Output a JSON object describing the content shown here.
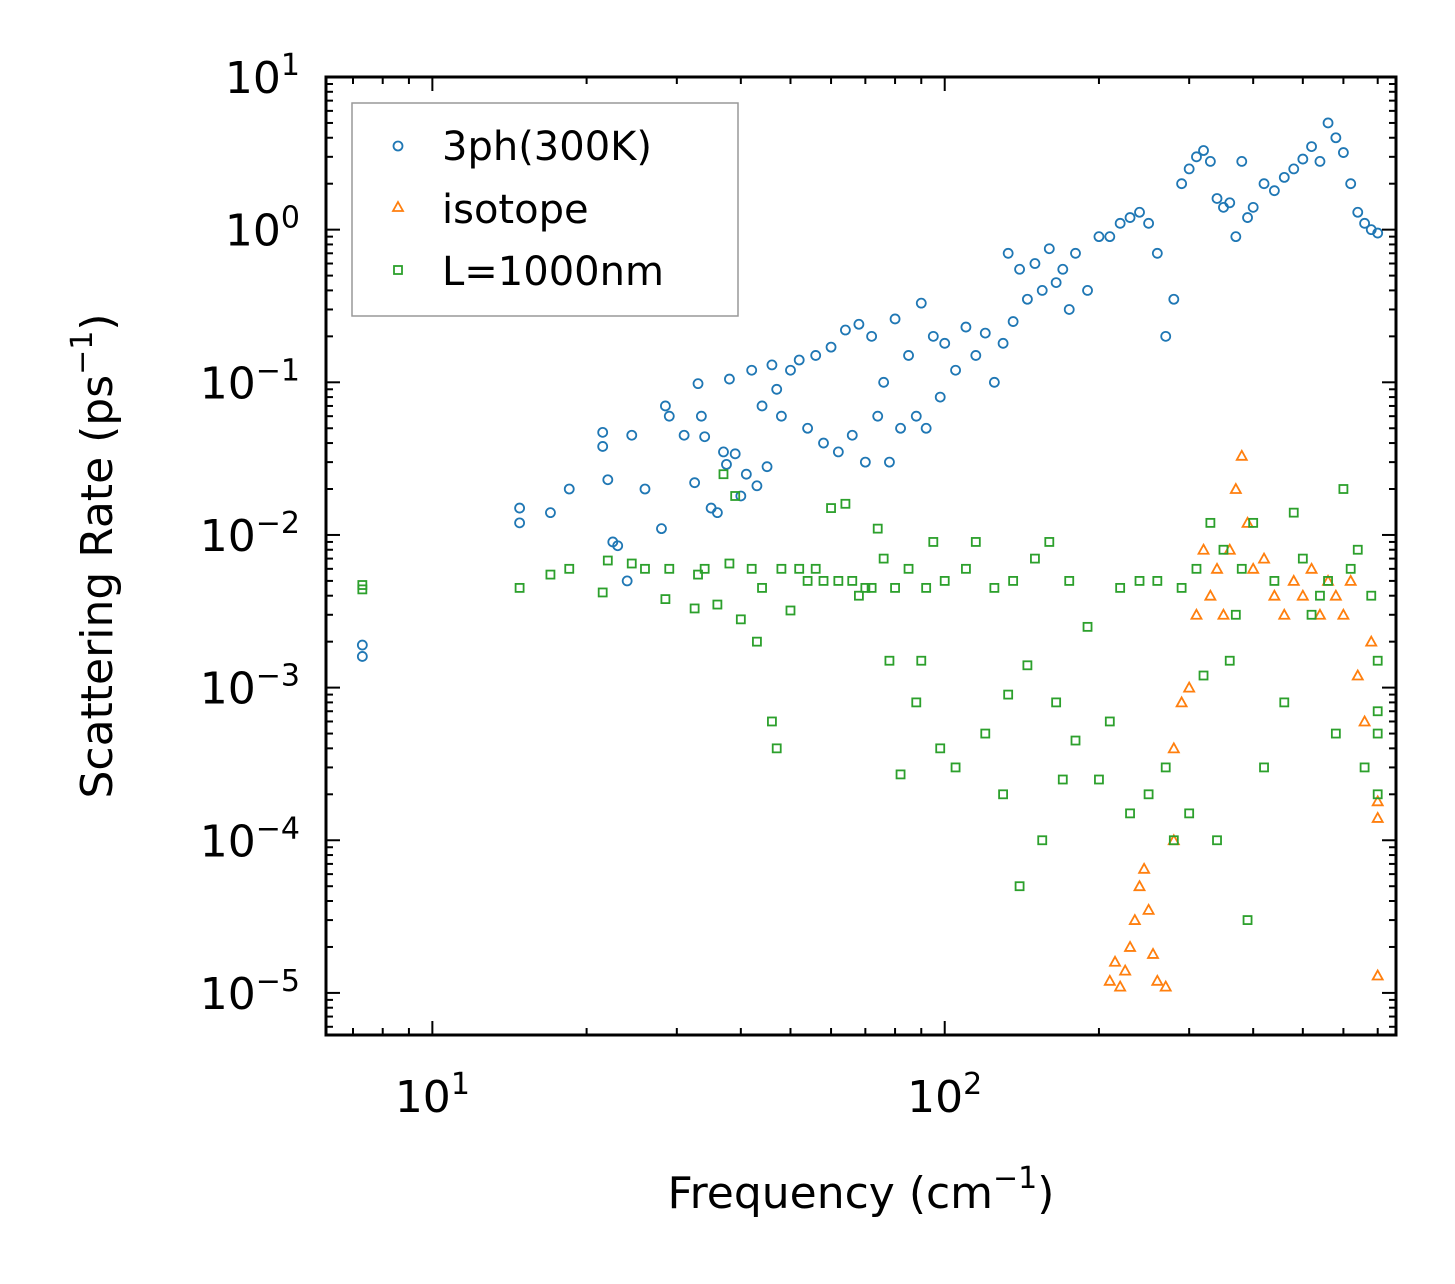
{
  "chart_data": {
    "type": "scatter",
    "title": "",
    "xlabel": "Frequency (cm",
    "xlabel_sup": "−1",
    "xlabel_end": ")",
    "ylabel": "Scattering Rate (ps",
    "ylabel_sup": "−1",
    "ylabel_end": ")",
    "xscale": "log",
    "yscale": "log",
    "xlim": [
      6.2,
      760
    ],
    "ylim": [
      5.3e-06,
      10
    ],
    "x_ticks": [
      {
        "value": 10,
        "base": "10",
        "exp": "1"
      },
      {
        "value": 100,
        "base": "10",
        "exp": "2"
      }
    ],
    "y_ticks": [
      {
        "value": 10,
        "base": "10",
        "exp": "1"
      },
      {
        "value": 1,
        "base": "10",
        "exp": "0"
      },
      {
        "value": 0.1,
        "base": "10",
        "exp": "−1"
      },
      {
        "value": 0.01,
        "base": "10",
        "exp": "−2"
      },
      {
        "value": 0.001,
        "base": "10",
        "exp": "−3"
      },
      {
        "value": 0.0001,
        "base": "10",
        "exp": "−4"
      },
      {
        "value": 1e-05,
        "base": "10",
        "exp": "−5"
      }
    ],
    "legend_position": "top-left",
    "series": [
      {
        "name": "3ph(300K)",
        "marker": "circle",
        "color": "#1f77b4",
        "x": [
          7.3,
          7.3,
          14.8,
          14.8,
          17.0,
          18.5,
          21.5,
          21.5,
          22.0,
          22.5,
          23.0,
          24.0,
          24.5,
          26.0,
          28.0,
          28.5,
          29.0,
          31.0,
          32.5,
          33.0,
          33.5,
          34.0,
          35.0,
          36.0,
          37.0,
          37.5,
          38.0,
          39.0,
          40.0,
          41.0,
          42.0,
          43.0,
          44.0,
          45.0,
          46.0,
          47.0,
          48.0,
          50.0,
          52.0,
          54.0,
          56.0,
          58.0,
          60.0,
          62.0,
          64.0,
          66.0,
          68.0,
          70.0,
          72.0,
          74.0,
          76.0,
          78.0,
          80.0,
          82.0,
          85.0,
          88.0,
          90.0,
          92.0,
          95.0,
          98.0,
          100.0,
          105.0,
          110.0,
          115.0,
          120.0,
          125.0,
          130.0,
          133.0,
          136.0,
          140.0,
          145.0,
          150.0,
          155.0,
          160.0,
          165.0,
          170.0,
          175.0,
          180.0,
          190.0,
          200.0,
          210.0,
          220.0,
          230.0,
          240.0,
          250.0,
          260.0,
          270.0,
          280.0,
          290.0,
          300.0,
          310.0,
          320.0,
          330.0,
          340.0,
          350.0,
          360.0,
          370.0,
          380.0,
          390.0,
          400.0,
          420.0,
          440.0,
          460.0,
          480.0,
          500.0,
          520.0,
          540.0,
          560.0,
          580.0,
          600.0,
          620.0,
          640.0,
          660.0,
          680.0,
          700.0
        ],
        "y": [
          0.0019,
          0.0016,
          0.015,
          0.012,
          0.014,
          0.02,
          0.047,
          0.038,
          0.023,
          0.009,
          0.0085,
          0.005,
          0.045,
          0.02,
          0.011,
          0.07,
          0.06,
          0.045,
          0.022,
          0.098,
          0.06,
          0.044,
          0.015,
          0.014,
          0.035,
          0.029,
          0.105,
          0.034,
          0.018,
          0.025,
          0.12,
          0.021,
          0.07,
          0.028,
          0.13,
          0.09,
          0.06,
          0.12,
          0.14,
          0.05,
          0.15,
          0.04,
          0.17,
          0.035,
          0.22,
          0.045,
          0.24,
          0.03,
          0.2,
          0.06,
          0.1,
          0.03,
          0.26,
          0.05,
          0.15,
          0.06,
          0.33,
          0.05,
          0.2,
          0.08,
          0.18,
          0.12,
          0.23,
          0.15,
          0.21,
          0.1,
          0.18,
          0.7,
          0.25,
          0.55,
          0.35,
          0.6,
          0.4,
          0.75,
          0.45,
          0.55,
          0.3,
          0.7,
          0.4,
          0.9,
          0.9,
          1.1,
          1.2,
          1.3,
          1.1,
          0.7,
          0.2,
          0.35,
          2.0,
          2.5,
          3.0,
          3.3,
          2.8,
          1.6,
          1.4,
          1.5,
          0.9,
          2.8,
          1.2,
          1.4,
          2.0,
          1.8,
          2.2,
          2.5,
          2.9,
          3.5,
          2.8,
          5.0,
          4.0,
          3.2,
          2.0,
          1.3,
          1.1,
          1.0,
          0.95
        ]
      },
      {
        "name": "isotope",
        "marker": "triangle",
        "color": "#ff7f0e",
        "x": [
          210.0,
          215.0,
          220.0,
          225.0,
          230.0,
          235.0,
          240.0,
          245.0,
          250.0,
          255.0,
          260.0,
          270.0,
          280.0,
          280.0,
          290.0,
          300.0,
          310.0,
          320.0,
          330.0,
          340.0,
          350.0,
          360.0,
          370.0,
          380.0,
          390.0,
          400.0,
          420.0,
          440.0,
          460.0,
          480.0,
          500.0,
          520.0,
          540.0,
          560.0,
          580.0,
          600.0,
          620.0,
          640.0,
          660.0,
          680.0,
          700.0,
          700.0,
          700.0
        ],
        "y": [
          1.2e-05,
          1.6e-05,
          1.1e-05,
          1.4e-05,
          2e-05,
          3e-05,
          5e-05,
          6.5e-05,
          3.5e-05,
          1.8e-05,
          1.2e-05,
          1.1e-05,
          0.0004,
          0.0001,
          0.0008,
          0.001,
          0.003,
          0.008,
          0.004,
          0.006,
          0.003,
          0.008,
          0.02,
          0.033,
          0.012,
          0.006,
          0.007,
          0.004,
          0.003,
          0.005,
          0.004,
          0.006,
          0.003,
          0.005,
          0.004,
          0.003,
          0.005,
          0.0012,
          0.0006,
          0.002,
          0.00018,
          0.00014,
          1.3e-05
        ]
      },
      {
        "name": "L=1000nm",
        "marker": "square",
        "color": "#2ca02c",
        "x": [
          7.3,
          7.3,
          14.8,
          17.0,
          18.5,
          21.5,
          22.0,
          24.5,
          26.0,
          28.5,
          29.0,
          32.5,
          33.0,
          34.0,
          36.0,
          37.0,
          38.0,
          39.0,
          40.0,
          42.0,
          43.0,
          44.0,
          46.0,
          47.0,
          48.0,
          50.0,
          52.0,
          54.0,
          56.0,
          58.0,
          60.0,
          62.0,
          64.0,
          66.0,
          68.0,
          70.0,
          72.0,
          74.0,
          76.0,
          78.0,
          80.0,
          82.0,
          85.0,
          88.0,
          90.0,
          92.0,
          95.0,
          98.0,
          100.0,
          105.0,
          110.0,
          115.0,
          120.0,
          125.0,
          130.0,
          133.0,
          136.0,
          140.0,
          145.0,
          150.0,
          155.0,
          160.0,
          165.0,
          170.0,
          175.0,
          180.0,
          190.0,
          200.0,
          210.0,
          220.0,
          230.0,
          240.0,
          250.0,
          260.0,
          270.0,
          280.0,
          290.0,
          300.0,
          310.0,
          320.0,
          330.0,
          340.0,
          350.0,
          360.0,
          370.0,
          380.0,
          390.0,
          400.0,
          420.0,
          440.0,
          460.0,
          480.0,
          500.0,
          520.0,
          540.0,
          560.0,
          580.0,
          600.0,
          620.0,
          640.0,
          660.0,
          680.0,
          700.0,
          700.0,
          700.0,
          700.0
        ],
        "y": [
          0.0047,
          0.0044,
          0.0045,
          0.0055,
          0.006,
          0.0042,
          0.0068,
          0.0065,
          0.006,
          0.0038,
          0.006,
          0.0033,
          0.0055,
          0.006,
          0.0035,
          0.025,
          0.0065,
          0.018,
          0.0028,
          0.006,
          0.002,
          0.0045,
          0.0006,
          0.0004,
          0.006,
          0.0032,
          0.006,
          0.005,
          0.006,
          0.005,
          0.015,
          0.005,
          0.016,
          0.005,
          0.004,
          0.0045,
          0.0045,
          0.011,
          0.007,
          0.0015,
          0.0045,
          0.00027,
          0.006,
          0.0008,
          0.0015,
          0.0045,
          0.009,
          0.0004,
          0.005,
          0.0003,
          0.006,
          0.009,
          0.0005,
          0.0045,
          0.0002,
          0.0009,
          0.005,
          5e-05,
          0.0014,
          0.007,
          0.0001,
          0.009,
          0.0008,
          0.00025,
          0.005,
          0.00045,
          0.0025,
          0.00025,
          0.0006,
          0.0045,
          0.00015,
          0.005,
          0.0002,
          0.005,
          0.0003,
          0.0001,
          0.0045,
          0.00015,
          0.006,
          0.0012,
          0.012,
          0.0001,
          0.008,
          0.0015,
          0.003,
          0.006,
          3e-05,
          0.012,
          0.0003,
          0.005,
          0.0008,
          0.014,
          0.007,
          0.003,
          0.004,
          0.005,
          0.0005,
          0.02,
          0.006,
          0.008,
          0.0003,
          0.004,
          0.0002,
          0.0005,
          0.0015,
          0.0007
        ]
      }
    ]
  }
}
